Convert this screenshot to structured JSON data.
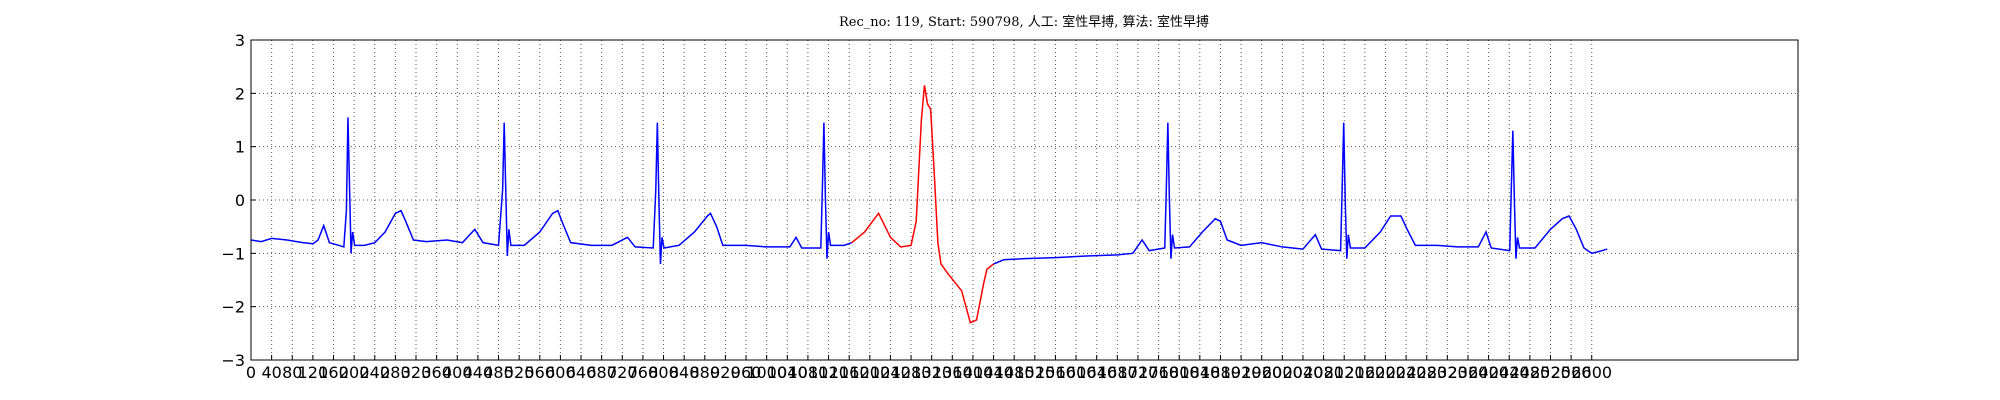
{
  "chart_data": {
    "type": "line",
    "title": "Rec_no: 119, Start: 590798, 人工: 室性早搏, 算法: 室性早搏",
    "xlim": [
      0,
      3000
    ],
    "ylim": [
      -3,
      3
    ],
    "xticks": [
      0,
      40,
      80,
      120,
      160,
      200,
      240,
      280,
      320,
      360,
      400,
      440,
      480,
      520,
      560,
      600,
      640,
      680,
      720,
      760,
      800,
      840,
      880,
      920,
      960,
      1000,
      1040,
      1080,
      1120,
      1160,
      1200,
      1240,
      1280,
      1320,
      1360,
      1400,
      1440,
      1480,
      1520,
      1560,
      1600,
      1640,
      1680,
      1720,
      1760,
      1800,
      1840,
      1880,
      1920,
      1960,
      2000,
      2040,
      2080,
      2120,
      2160,
      2200,
      2240,
      2280,
      2320,
      2360,
      2400,
      2440,
      2480,
      2520,
      2560,
      2600
    ],
    "yticks": [
      {
        "value": -3,
        "label": "−3"
      },
      {
        "value": -2,
        "label": "−2"
      },
      {
        "value": -1,
        "label": "−1"
      },
      0,
      1,
      2,
      3
    ],
    "grid": true,
    "series": [
      {
        "color": "#0000ff",
        "x": [
          0,
          20,
          40,
          70,
          100,
          120,
          130,
          141,
          152,
          170,
          180,
          185,
          188,
          191,
          194,
          197,
          201,
          220,
          240,
          260,
          280,
          291,
          300,
          315,
          340,
          380,
          410,
          434,
          450,
          480,
          488,
          491,
          494,
          497,
          500,
          504,
          530,
          560,
          585,
          595,
          605,
          620,
          660,
          700,
          730,
          745,
          780,
          785,
          788,
          791,
          794,
          797,
          801,
          830,
          860,
          885,
          891,
          903,
          915,
          960,
          1000,
          1045,
          1057,
          1068,
          1105,
          1108,
          1111,
          1114,
          1117,
          1120,
          1124,
          1150,
          1165,
          1300,
          1440,
          1460,
          1500,
          1560,
          1620,
          1680,
          1710,
          1728,
          1742,
          1772,
          1775,
          1778,
          1781,
          1784,
          1787,
          1791,
          1820,
          1845,
          1870,
          1880,
          1893,
          1920,
          1960,
          2000,
          2040,
          2064,
          2076,
          2113,
          2116,
          2119,
          2122,
          2125,
          2128,
          2132,
          2160,
          2190,
          2210,
          2230,
          2242,
          2258,
          2300,
          2340,
          2380,
          2395,
          2405,
          2441,
          2444,
          2447,
          2450,
          2453,
          2456,
          2460,
          2490,
          2520,
          2543,
          2556,
          2570,
          2585,
          2600,
          2620,
          2630
        ],
        "values": [
          -0.75,
          -0.78,
          -0.72,
          -0.75,
          -0.8,
          -0.82,
          -0.75,
          -0.48,
          -0.8,
          -0.85,
          -0.88,
          -0.2,
          1.55,
          0.3,
          -1.0,
          -0.6,
          -0.85,
          -0.85,
          -0.8,
          -0.6,
          -0.25,
          -0.2,
          -0.4,
          -0.75,
          -0.78,
          -0.75,
          -0.8,
          -0.55,
          -0.8,
          -0.85,
          0.2,
          1.45,
          0.2,
          -1.05,
          -0.55,
          -0.85,
          -0.85,
          -0.6,
          -0.25,
          -0.2,
          -0.45,
          -0.8,
          -0.85,
          -0.85,
          -0.7,
          -0.88,
          -0.9,
          0.2,
          1.45,
          0.0,
          -1.2,
          -0.7,
          -0.9,
          -0.85,
          -0.6,
          -0.3,
          -0.25,
          -0.5,
          -0.85,
          -0.85,
          -0.88,
          -0.88,
          -0.7,
          -0.9,
          -0.9,
          0.2,
          1.45,
          0.0,
          -1.1,
          -0.6,
          -0.85,
          -0.85,
          -0.8,
          null,
          -1.2,
          -1.12,
          -1.1,
          -1.08,
          -1.05,
          -1.03,
          -1.0,
          -0.75,
          -0.95,
          -0.9,
          0.2,
          1.45,
          0.0,
          -1.1,
          -0.65,
          -0.9,
          -0.88,
          -0.6,
          -0.35,
          -0.4,
          -0.75,
          -0.85,
          -0.8,
          -0.88,
          -0.92,
          -0.65,
          -0.92,
          -0.95,
          0.2,
          1.45,
          0.0,
          -1.1,
          -0.65,
          -0.9,
          -0.9,
          -0.6,
          -0.3,
          -0.3,
          -0.55,
          -0.85,
          -0.85,
          -0.88,
          -0.88,
          -0.6,
          -0.9,
          -0.95,
          0.2,
          1.3,
          0.0,
          -1.1,
          -0.7,
          -0.9,
          -0.9,
          -0.55,
          -0.35,
          -0.3,
          -0.55,
          -0.9,
          -1.0,
          -0.95,
          -0.92
        ]
      },
      {
        "color": "#ff0000",
        "x": [
          1165,
          1190,
          1217,
          1240,
          1260,
          1280,
          1290,
          1300,
          1306,
          1312,
          1318,
          1325,
          1332,
          1338,
          1353,
          1378,
          1395,
          1407,
          1420,
          1427,
          1440
        ],
        "values": [
          -0.8,
          -0.6,
          -0.25,
          -0.7,
          -0.88,
          -0.85,
          -0.4,
          1.5,
          2.15,
          1.8,
          1.7,
          0.5,
          -0.8,
          -1.2,
          -1.4,
          -1.7,
          -2.3,
          -2.25,
          -1.6,
          -1.3,
          -1.2
        ]
      }
    ]
  }
}
